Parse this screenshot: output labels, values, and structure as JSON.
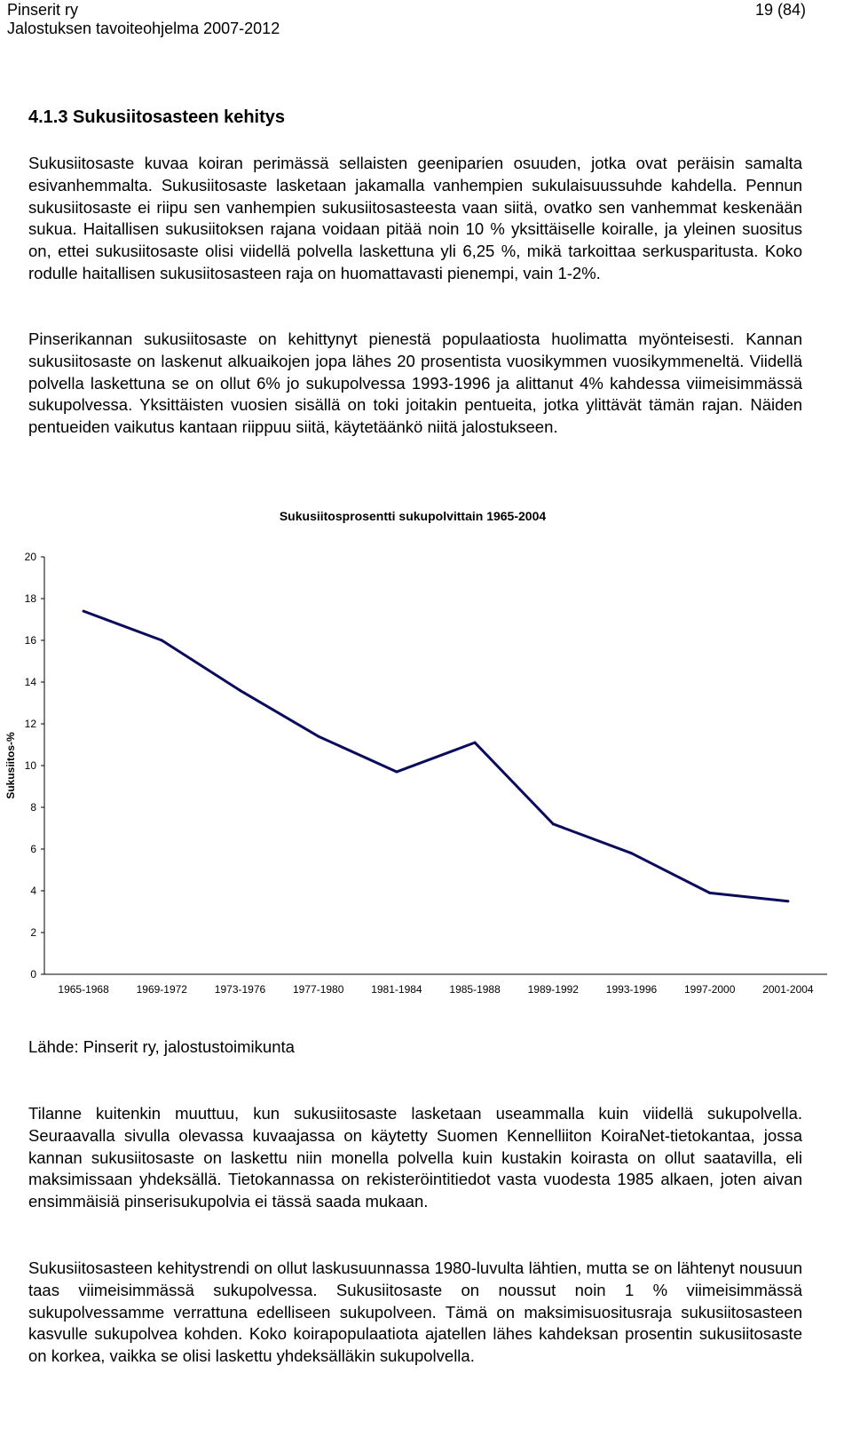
{
  "header": {
    "org": "Pinserit ry",
    "program": "Jalostuksen tavoiteohjelma 2007-2012",
    "page": "19 (84)"
  },
  "section": {
    "heading": "4.1.3 Sukusiitosasteen kehitys"
  },
  "paragraphs": [
    "Sukusiitosaste kuvaa koiran perimässä sellaisten geeniparien osuuden, jotka ovat peräisin samalta esivanhemmalta. Sukusiitosaste lasketaan jakamalla vanhempien sukulaisuussuhde kahdella. Pennun sukusiitosaste ei riipu sen vanhempien sukusiitosasteesta vaan siitä, ovatko sen vanhemmat keskenään sukua. Haitallisen sukusiitoksen rajana voidaan pitää noin 10 % yksittäiselle koiralle, ja yleinen suositus on, ettei sukusiitosaste olisi viidellä polvella laskettuna yli 6,25 %, mikä tarkoittaa serkusparitusta. Koko rodulle haitallisen sukusiitosasteen raja on huomattavasti pienempi, vain 1-2%.",
    "Pinserikannan sukusiitosaste on kehittynyt pienestä populaatiosta huolimatta myönteisesti. Kannan sukusiitosaste on laskenut alkuaikojen jopa lähes 20 prosentista vuosikymmen vuosikymmeneltä. Viidellä polvella laskettuna se on ollut 6% jo sukupolvessa 1993-1996 ja alittanut 4% kahdessa viimeisimmässä sukupolvessa. Yksittäisten vuosien sisällä on toki joitakin pentueita, jotka ylittävät tämän rajan. Näiden pentueiden vaikutus kantaan riippuu siitä, käytetäänkö niitä jalostukseen.",
    "Tilanne kuitenkin muuttuu, kun sukusiitosaste lasketaan useammalla kuin viidellä sukupolvella. Seuraavalla sivulla olevassa kuvaajassa on käytetty Suomen Kennelliiton KoiraNet-tietokantaa, jossa kannan sukusiitosaste on laskettu niin monella polvella kuin kustakin koirasta on ollut saatavilla, eli maksimissaan yhdeksällä. Tietokannassa on rekisteröintitiedot vasta vuodesta 1985 alkaen, joten aivan ensimmäisiä pinserisukupolvia ei tässä saada mukaan.",
    "Sukusiitosasteen kehitystrendi on ollut laskusuunnassa 1980-luvulta lähtien, mutta se on lähtenyt nousuun taas viimeisimmässä sukupolvessa. Sukusiitosaste on noussut noin 1 % viimeisimmässä sukupolvessamme verrattuna edelliseen sukupolveen. Tämä on maksimisuositusraja sukusiitosasteen kasvulle sukupolvea kohden. Koko koirapopulaatiota ajatellen lähes kahdeksan prosentin sukusiitosaste on korkea, vaikka se olisi laskettu yhdeksälläkin sukupolvella."
  ],
  "source": "Lähde: Pinserit ry, jalostustoimikunta",
  "chart_data": {
    "type": "line",
    "title": "Sukusiitosprosentti sukupolvittain 1965-2004",
    "ylabel": "Sukusiitos-%",
    "xlabel": "",
    "categories": [
      "1965-1968",
      "1969-1972",
      "1973-1976",
      "1977-1980",
      "1981-1984",
      "1985-1988",
      "1989-1992",
      "1993-1996",
      "1997-2000",
      "2001-2004"
    ],
    "series": [
      {
        "values": [
          17.4,
          16.0,
          13.6,
          11.4,
          9.7,
          11.1,
          7.2,
          5.8,
          3.9,
          3.5
        ],
        "color": "#0b0b5c"
      }
    ],
    "ylim": [
      0,
      20
    ],
    "yticks": [
      0,
      2,
      4,
      6,
      8,
      10,
      12,
      14,
      16,
      18,
      20
    ],
    "grid": false,
    "legend": "none"
  }
}
